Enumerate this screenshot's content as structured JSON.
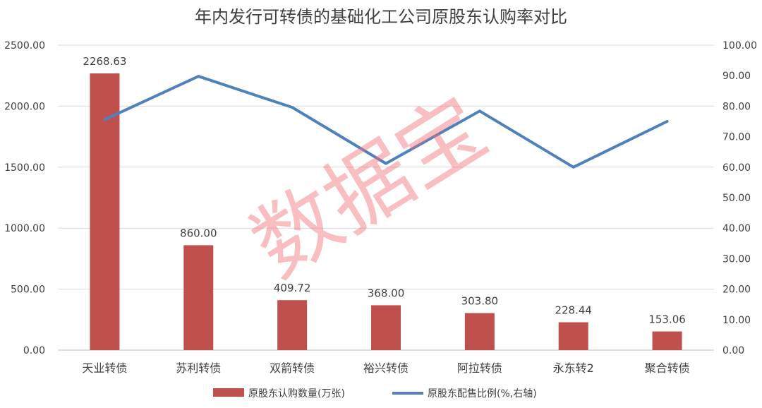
{
  "chart_data": {
    "type": "bar",
    "title": "年内发行可转债的基础化工公司原股东认购率对比",
    "categories": [
      "天业转债",
      "苏利转债",
      "双箭转债",
      "裕兴转债",
      "阿拉转债",
      "永东转2",
      "聚合转债"
    ],
    "series": [
      {
        "name": "原股东认购数量(万张)",
        "type": "bar",
        "axis": "left",
        "color": "#c0504d",
        "values": [
          2268.63,
          860.0,
          409.72,
          368.0,
          303.8,
          228.44,
          153.06
        ],
        "labels": [
          "2268.63",
          "860.00",
          "409.72",
          "368.00",
          "303.80",
          "228.44",
          "153.06"
        ]
      },
      {
        "name": "原股东配售比例(%,右轴)",
        "type": "line",
        "axis": "right",
        "color": "#4f81bd",
        "values": [
          75.6,
          89.8,
          79.6,
          61.2,
          78.4,
          60.0,
          75.0
        ]
      }
    ],
    "y_left": {
      "lim": [
        0,
        2500
      ],
      "ticks": [
        "0.00",
        "500.00",
        "1000.00",
        "1500.00",
        "2000.00",
        "2500.00"
      ]
    },
    "y_right": {
      "lim": [
        0,
        100
      ],
      "ticks": [
        "0.00",
        "10.00",
        "20.00",
        "30.00",
        "40.00",
        "50.00",
        "60.00",
        "70.00",
        "80.00",
        "90.00",
        "100.00"
      ]
    },
    "grid": true,
    "legend": "bottom",
    "watermark": "数据宝"
  }
}
